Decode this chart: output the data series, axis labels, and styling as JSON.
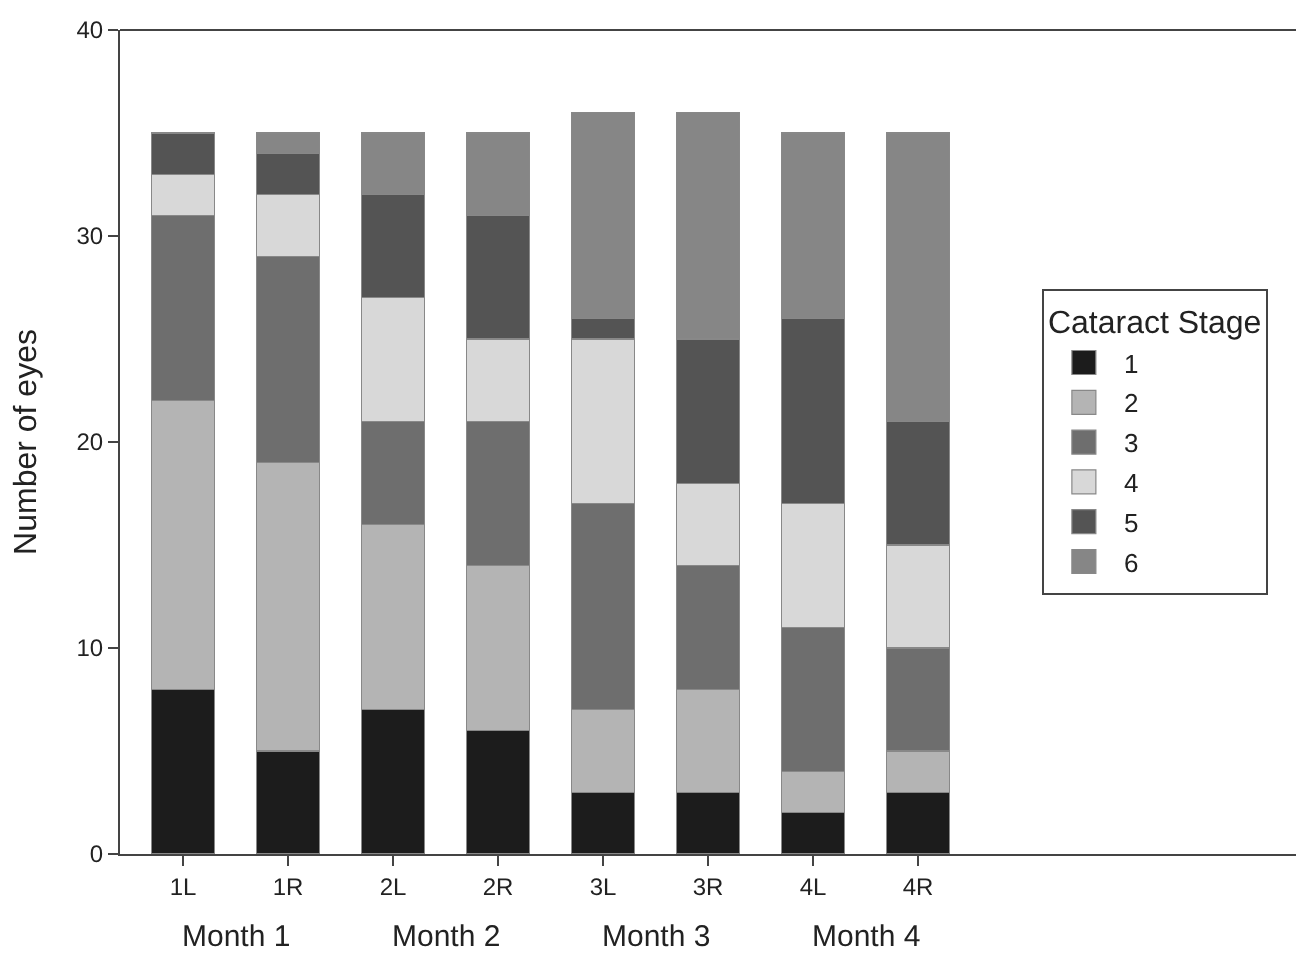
{
  "chart_data": {
    "type": "bar",
    "stacked": true,
    "ylabel": "Number of eyes",
    "legend_title": "Cataract Stage",
    "legend": "right",
    "categories": [
      "1L",
      "1R",
      "2L",
      "2R",
      "3L",
      "3R",
      "4L",
      "4R"
    ],
    "series": [
      {
        "name": "1",
        "color": "#1c1c1c",
        "values": [
          8,
          5,
          7,
          6,
          3,
          3,
          2,
          3
        ]
      },
      {
        "name": "2",
        "color": "#b4b4b4",
        "values": [
          14,
          14,
          9,
          8,
          4,
          5,
          2,
          2
        ]
      },
      {
        "name": "3",
        "color": "#6e6e6e",
        "values": [
          9,
          10,
          5,
          7,
          10,
          6,
          7,
          5
        ]
      },
      {
        "name": "4",
        "color": "#d8d8d8",
        "values": [
          2,
          3,
          6,
          4,
          8,
          4,
          6,
          5
        ]
      },
      {
        "name": "5",
        "color": "#545454",
        "values": [
          2,
          2,
          5,
          6,
          1,
          7,
          9,
          6
        ]
      },
      {
        "name": "6",
        "color": "#868686",
        "values": [
          0,
          1,
          3,
          4,
          10,
          11,
          9,
          14
        ]
      }
    ],
    "annotations": [
      "Month 1",
      "Month 2",
      "Month 3",
      "Month 4"
    ],
    "ylim": [
      0,
      40
    ],
    "yticks": [
      0,
      10,
      20,
      30,
      40
    ]
  }
}
